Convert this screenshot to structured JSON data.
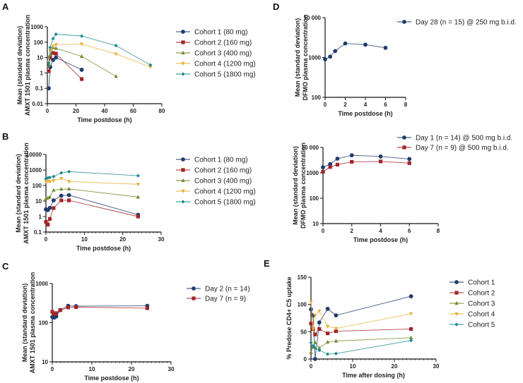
{
  "colors": {
    "navy": "#1f3b6e",
    "red": "#a32428",
    "olive": "#6f8a2a",
    "gold": "#e8b13a",
    "teal": "#1d8a8f"
  },
  "chart_data": [
    {
      "panel_label": "A",
      "type": "line",
      "yscale": "log",
      "xlabel": "Time postdose (h)",
      "ylabel": [
        "Mean (standard deviation)",
        "AMXT 1501 plasma concentration"
      ],
      "xlim": [
        0,
        80
      ],
      "ylim": [
        0.01,
        1000
      ],
      "xticks": [
        0,
        20,
        40,
        60,
        80
      ],
      "yticks": [
        0.01,
        0.1,
        1,
        10,
        100,
        1000
      ],
      "ytick_labels": [
        "0.01",
        "0.1",
        "1",
        "10",
        "100",
        "1000"
      ],
      "legend": "right",
      "series": [
        {
          "name": "Cohort 1 (80 mg)",
          "color": "#1f3b6e",
          "marker": "circle",
          "x": [
            1,
            2,
            4,
            6,
            24
          ],
          "y": [
            0.1,
            2.4,
            7,
            10,
            1.6
          ]
        },
        {
          "name": "Cohort 2 (160 mg)",
          "color": "#a32428",
          "marker": "square",
          "x": [
            1,
            2,
            4,
            6,
            24
          ],
          "y": [
            1.3,
            10,
            20,
            18,
            0.4
          ]
        },
        {
          "name": "Cohort 3 (400 mg)",
          "color": "#6f8a2a",
          "marker": "triangle-up",
          "x": [
            1,
            2,
            4,
            6,
            24,
            48
          ],
          "y": [
            3,
            15,
            45,
            40,
            12,
            0.6
          ]
        },
        {
          "name": "Cohort 4 (1200 mg)",
          "color": "#e8b13a",
          "marker": "triangle-down",
          "x": [
            1,
            2,
            4,
            6,
            24,
            48,
            72
          ],
          "y": [
            5,
            28,
            55,
            70,
            75,
            17,
            2.4
          ]
        },
        {
          "name": "Cohort 5 (1800 mg)",
          "color": "#1d8a8f",
          "marker": "diamond",
          "x": [
            1,
            2,
            4,
            6,
            24,
            48,
            72
          ],
          "y": [
            4,
            45,
            170,
            330,
            250,
            60,
            3.3
          ]
        }
      ]
    },
    {
      "panel_label": "B",
      "type": "line",
      "yscale": "log",
      "xlabel": "Time postdose (h)",
      "ylabel": [
        "Mean (standard deviation)",
        "AMXT 1501 plasma concentration"
      ],
      "xlim": [
        0,
        30
      ],
      "ylim": [
        0.1,
        10000
      ],
      "xticks": [
        0,
        10,
        20,
        30
      ],
      "yticks": [
        0.1,
        1,
        10,
        100,
        1000,
        10000
      ],
      "ytick_labels": [
        "0.1",
        "1",
        "10",
        "100",
        "1000",
        "10000"
      ],
      "legend": "right",
      "series": [
        {
          "name": "Cohort 1 (80 mg)",
          "color": "#1f3b6e",
          "marker": "circle",
          "x": [
            0,
            0.5,
            1,
            2,
            4,
            6,
            24
          ],
          "y": [
            2.9,
            2.6,
            3.6,
            11,
            22,
            24,
            1.3
          ]
        },
        {
          "name": "Cohort 2 (160 mg)",
          "color": "#a32428",
          "marker": "square",
          "x": [
            0,
            0.5,
            1,
            2,
            4,
            6,
            24
          ],
          "y": [
            0.45,
            0.3,
            0.7,
            3.5,
            11,
            11,
            1.0
          ]
        },
        {
          "name": "Cohort 3 (400 mg)",
          "color": "#6f8a2a",
          "marker": "triangle-up",
          "x": [
            0,
            0.5,
            1,
            2,
            4,
            6,
            24
          ],
          "y": [
            14,
            16,
            18,
            50,
            58,
            60,
            18
          ]
        },
        {
          "name": "Cohort 4 (1200 mg)",
          "color": "#e8b13a",
          "marker": "triangle-down",
          "x": [
            0,
            0.5,
            1,
            2,
            4,
            6,
            24
          ],
          "y": [
            190,
            180,
            180,
            210,
            280,
            180,
            120
          ]
        },
        {
          "name": "Cohort 5 (1800 mg)",
          "color": "#1d8a8f",
          "marker": "diamond",
          "x": [
            0,
            0.5,
            1,
            2,
            4,
            6,
            24
          ],
          "y": [
            280,
            310,
            330,
            380,
            650,
            780,
            430
          ]
        }
      ]
    },
    {
      "panel_label": "C",
      "type": "line",
      "yscale": "log",
      "xlabel": "Time postdose (h)",
      "ylabel": [
        "Mean (standard deviation)",
        "AMXT 1501 plasma concentration"
      ],
      "xlim": [
        0,
        30
      ],
      "ylim": [
        10,
        1000
      ],
      "xticks": [
        0,
        10,
        20,
        30
      ],
      "yticks": [
        10,
        100,
        1000
      ],
      "ytick_labels": [
        "10",
        "100",
        "1000"
      ],
      "legend": "right",
      "series": [
        {
          "name": "Day 2 (n = 14)",
          "color": "#1f3b6e",
          "marker": "circle",
          "x": [
            0,
            0.5,
            1,
            2,
            4,
            6,
            24
          ],
          "y": [
            140,
            135,
            145,
            210,
            270,
            265,
            270
          ]
        },
        {
          "name": "Day 7 (n = 9)",
          "color": "#a32428",
          "marker": "square",
          "x": [
            0,
            0.5,
            1,
            2,
            4,
            6,
            24
          ],
          "y": [
            190,
            165,
            175,
            210,
            245,
            250,
            235
          ]
        }
      ]
    },
    {
      "panel_label": "D",
      "type": "line",
      "yscale": "log",
      "xlabel": "Time postdose (h)",
      "ylabel": [
        "Mean (standard deviation)",
        "DFMO plasma concentration"
      ],
      "xlim": [
        0,
        8
      ],
      "ylim": [
        100,
        10000
      ],
      "xticks": [
        0,
        2,
        4,
        6,
        8
      ],
      "yticks": [
        100,
        1000,
        10000
      ],
      "ytick_labels": [
        "100",
        "1000",
        "10 000"
      ],
      "legend": "right",
      "series": [
        {
          "name": "Day 28 (n = 15) @ 250 mg b.i.d.",
          "color": "#1f3b6e",
          "marker": "circle",
          "x": [
            0,
            0.5,
            1,
            2,
            4,
            6
          ],
          "y": [
            900,
            1050,
            1450,
            2250,
            2100,
            1750
          ]
        }
      ]
    },
    {
      "panel_label": "",
      "type": "line",
      "yscale": "log",
      "xlabel": "Time postdose (h)",
      "ylabel": [
        "Mean (standard deviation)",
        "DFMO plasma concentration"
      ],
      "xlim": [
        0,
        8
      ],
      "ylim": [
        10,
        10000
      ],
      "xticks": [
        0,
        2,
        4,
        6,
        8
      ],
      "yticks": [
        10,
        100,
        1000,
        10000
      ],
      "ytick_labels": [
        "10",
        "100",
        "1000",
        "10 000"
      ],
      "legend": "top-right",
      "series": [
        {
          "name": "Day 1 (n = 14) @ 500 mg b.i.d.",
          "color": "#1f3b6e",
          "marker": "circle",
          "x": [
            0,
            0.5,
            1,
            2,
            4,
            6
          ],
          "y": [
            1650,
            2200,
            3600,
            4900,
            4400,
            3500
          ]
        },
        {
          "name": "Day 7 (n = 9) @ 500 mg b.i.d.",
          "color": "#a32428",
          "marker": "square",
          "x": [
            0,
            0.5,
            1,
            2,
            4,
            6
          ],
          "y": [
            1100,
            1700,
            2100,
            2700,
            2800,
            2400
          ]
        }
      ]
    },
    {
      "panel_label": "E",
      "type": "line",
      "yscale": "linear",
      "xlabel": "Time after dosing (h)",
      "ylabel": [
        "% Predose CD4+ C5 uptake"
      ],
      "xlim": [
        0,
        30
      ],
      "ylim": [
        0,
        150
      ],
      "xticks": [
        0,
        10,
        20,
        30
      ],
      "yticks": [
        0,
        50,
        100,
        150
      ],
      "ytick_labels": [
        "0",
        "50",
        "100",
        "150"
      ],
      "legend": "right",
      "series": [
        {
          "name": "Cohort 1",
          "color": "#1f3b6e",
          "marker": "circle",
          "x": [
            0,
            0.5,
            1,
            2,
            4,
            6,
            24
          ],
          "y": [
            91,
            80,
            0,
            67,
            92,
            80,
            115
          ]
        },
        {
          "name": "Cohort 2",
          "color": "#a32428",
          "marker": "square",
          "x": [
            0,
            0.5,
            1,
            2,
            4,
            6,
            24
          ],
          "y": [
            65,
            55,
            45,
            55,
            47,
            51,
            55
          ]
        },
        {
          "name": "Cohort 3",
          "color": "#6f8a2a",
          "marker": "triangle-up",
          "x": [
            0,
            0.5,
            1,
            2,
            4,
            6,
            24
          ],
          "y": [
            12,
            22,
            30,
            20,
            31,
            33,
            39
          ]
        },
        {
          "name": "Cohort 4",
          "color": "#e8b13a",
          "marker": "triangle-down",
          "x": [
            0,
            0.5,
            1,
            2,
            4,
            6,
            24
          ],
          "y": [
            105,
            55,
            80,
            88,
            60,
            56,
            83
          ]
        },
        {
          "name": "Cohort 5",
          "color": "#1d8a8f",
          "marker": "diamond",
          "x": [
            0,
            0.5,
            1,
            2,
            4,
            6,
            24
          ],
          "y": [
            30,
            24,
            20,
            16,
            9,
            10,
            34
          ]
        }
      ]
    }
  ]
}
